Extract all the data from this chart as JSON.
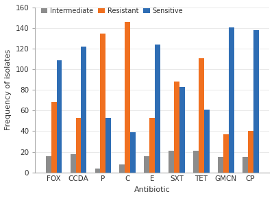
{
  "categories": [
    "FOX",
    "CCDA",
    "P",
    "C",
    "E",
    "SXT",
    "TET",
    "GMCN",
    "CP"
  ],
  "intermediate": [
    16,
    18,
    4,
    8,
    16,
    21,
    21,
    15,
    15
  ],
  "resistant": [
    68,
    53,
    135,
    146,
    53,
    88,
    111,
    37,
    40
  ],
  "sensitive": [
    109,
    122,
    53,
    39,
    124,
    83,
    61,
    141,
    138
  ],
  "intermediate_color": "#8c8c8c",
  "resistant_color": "#f07020",
  "sensitive_color": "#2e6db4",
  "ylabel": "Frequency of isolates",
  "xlabel": "Antibiotic",
  "ylim": [
    0,
    160
  ],
  "yticks": [
    0,
    20,
    40,
    60,
    80,
    100,
    120,
    140,
    160
  ],
  "legend_labels": [
    "Intermediate",
    "Resistant",
    "Sensitive"
  ],
  "bar_width": 0.22,
  "figsize": [
    4.0,
    2.89
  ],
  "dpi": 100,
  "bg_color": "#ffffff"
}
